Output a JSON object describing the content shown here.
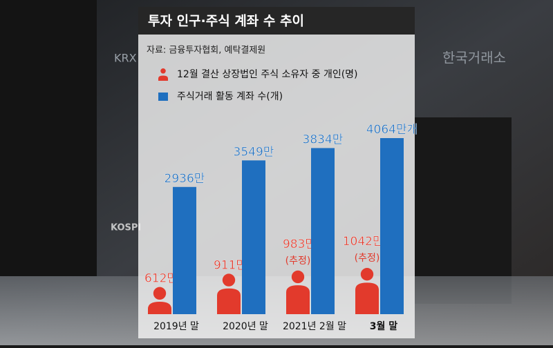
{
  "chart_data": {
    "type": "bar",
    "title": "투자 인구·주식 계좌 수 추이",
    "source": "자료: 금융투자협회, 예탁결제원",
    "categories": [
      "2019년 말",
      "2020년 말",
      "2021년 2월 말",
      "3월 말"
    ],
    "category_bold": [
      false,
      false,
      false,
      true
    ],
    "series": [
      {
        "name": "12월 결산 상장법인 주식 소유자 중 개인(명)",
        "color": "#e23a2c",
        "marker": "person",
        "values": [
          612,
          911,
          983,
          1042
        ],
        "value_labels": [
          "612만",
          "911만",
          "983만",
          "1042만명"
        ],
        "value_notes": [
          null,
          null,
          "(추정)",
          "(추정)"
        ]
      },
      {
        "name": "주식거래 활동 계좌 수(개)",
        "color": "#1f6fbf",
        "marker": "square",
        "values": [
          2936,
          3549,
          3834,
          4064
        ],
        "value_labels": [
          "2936만",
          "3549만",
          "3834만",
          "4064만개"
        ]
      }
    ],
    "background_texts": [
      "KRX",
      "한국거래소",
      "KOSPI"
    ]
  }
}
